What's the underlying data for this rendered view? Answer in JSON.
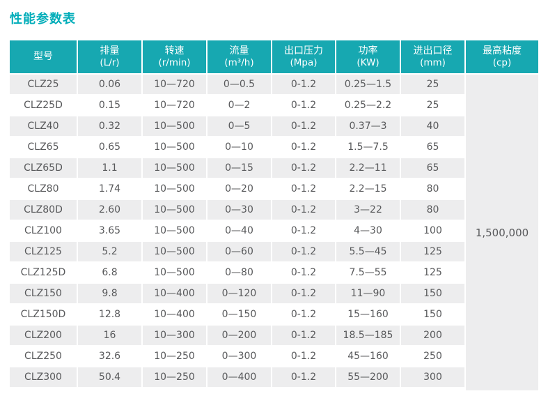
{
  "page": {
    "title": "性能参数表"
  },
  "colors": {
    "title": "#01adb9",
    "header_bg": "#17a8b1",
    "header_text": "#ffffff",
    "row_stripe": "#ededee",
    "cell_text": "#58595b"
  },
  "table": {
    "columns": [
      {
        "name": "型号",
        "unit": ""
      },
      {
        "name": "排量",
        "unit": "(L/r)"
      },
      {
        "name": "转速",
        "unit": "(r/min)"
      },
      {
        "name": "流量",
        "unit": "(m³/h)"
      },
      {
        "name": "出口压力",
        "unit": "(Mpa)"
      },
      {
        "name": "功率",
        "unit": "(KW)"
      },
      {
        "name": "进出口径",
        "unit": "(mm)"
      },
      {
        "name": "最高粘度",
        "unit": "(cp)"
      }
    ],
    "rows": [
      {
        "model": "CLZ25",
        "displacement": "0.06",
        "speed": "10—720",
        "flow": "0—0.5",
        "outlet_pressure": "0-1.2",
        "power": "0.25—1.5",
        "diameter": "25"
      },
      {
        "model": "CLZ25D",
        "displacement": "0.15",
        "speed": "10—720",
        "flow": "0—2",
        "outlet_pressure": "0-1.2",
        "power": "0.25—2.2",
        "diameter": "25"
      },
      {
        "model": "CLZ40",
        "displacement": "0.32",
        "speed": "10—500",
        "flow": "0—5",
        "outlet_pressure": "0-1.2",
        "power": "0.37—3",
        "diameter": "40"
      },
      {
        "model": "CLZ65",
        "displacement": "0.65",
        "speed": "10—500",
        "flow": "0—10",
        "outlet_pressure": "0-1.2",
        "power": "1.5—7.5",
        "diameter": "65"
      },
      {
        "model": "CLZ65D",
        "displacement": "1.1",
        "speed": "10—500",
        "flow": "0—15",
        "outlet_pressure": "0-1.2",
        "power": "2.2—11",
        "diameter": "65"
      },
      {
        "model": "CLZ80",
        "displacement": "1.74",
        "speed": "10—500",
        "flow": "0—20",
        "outlet_pressure": "0-1.2",
        "power": "2.2—15",
        "diameter": "80"
      },
      {
        "model": "CLZ80D",
        "displacement": "2.60",
        "speed": "10—500",
        "flow": "0—30",
        "outlet_pressure": "0-1.2",
        "power": "3—22",
        "diameter": "80"
      },
      {
        "model": "CLZ100",
        "displacement": "3.65",
        "speed": "10—500",
        "flow": "0—40",
        "outlet_pressure": "0-1.2",
        "power": "4—30",
        "diameter": "100"
      },
      {
        "model": "CLZ125",
        "displacement": "5.2",
        "speed": "10—500",
        "flow": "0—60",
        "outlet_pressure": "0-1.2",
        "power": "5.5—45",
        "diameter": "125"
      },
      {
        "model": "CLZ125D",
        "displacement": "6.8",
        "speed": "10—500",
        "flow": "0—80",
        "outlet_pressure": "0-1.2",
        "power": "7.5—55",
        "diameter": "125"
      },
      {
        "model": "CLZ150",
        "displacement": "9.8",
        "speed": "10—400",
        "flow": "0—120",
        "outlet_pressure": "0-1.2",
        "power": "11—90",
        "diameter": "150"
      },
      {
        "model": "CLZ150D",
        "displacement": "12.8",
        "speed": "10—400",
        "flow": "0—150",
        "outlet_pressure": "0-1.2",
        "power": "15—160",
        "diameter": "150"
      },
      {
        "model": "CLZ200",
        "displacement": "16",
        "speed": "10—300",
        "flow": "0—200",
        "outlet_pressure": "0-1.2",
        "power": "18.5—185",
        "diameter": "200"
      },
      {
        "model": "CLZ250",
        "displacement": "32.6",
        "speed": "10—250",
        "flow": "0—300",
        "outlet_pressure": "0-1.2",
        "power": "45—160",
        "diameter": "250"
      },
      {
        "model": "CLZ300",
        "displacement": "50.4",
        "speed": "10—250",
        "flow": "0—400",
        "outlet_pressure": "0-1.2",
        "power": "55—200",
        "diameter": "300"
      }
    ],
    "max_viscosity": "1,500,000"
  }
}
